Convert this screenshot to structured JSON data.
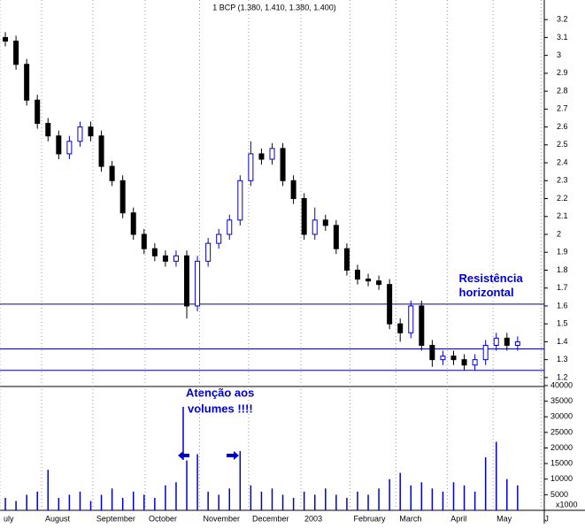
{
  "chart_data": {
    "type": "candlestick",
    "title": "1 BCP (1.380, 1.410, 1.380, 1.400)",
    "x": [
      0,
      1,
      2,
      3,
      4,
      5,
      6,
      7,
      8,
      9,
      10,
      11,
      12,
      13,
      14,
      15,
      16,
      17,
      18,
      19,
      20,
      21,
      22,
      23,
      24,
      25,
      26,
      27,
      28,
      29,
      30,
      31,
      32,
      33,
      34,
      35,
      36,
      37,
      38,
      39,
      40,
      41,
      42,
      43,
      44,
      45,
      46,
      47,
      48
    ],
    "open": [
      3.1,
      3.08,
      2.95,
      2.75,
      2.62,
      2.55,
      2.45,
      2.52,
      2.6,
      2.55,
      2.38,
      2.3,
      2.12,
      2.0,
      1.92,
      1.88,
      1.85,
      1.88,
      1.6,
      1.85,
      1.95,
      2.0,
      2.08,
      2.3,
      2.45,
      2.42,
      2.48,
      2.3,
      2.2,
      2.0,
      2.08,
      2.05,
      1.92,
      1.8,
      1.75,
      1.74,
      1.72,
      1.5,
      1.45,
      1.6,
      1.38,
      1.3,
      1.32,
      1.3,
      1.27,
      1.3,
      1.38,
      1.42,
      1.38
    ],
    "high": [
      3.13,
      3.11,
      2.98,
      2.78,
      2.65,
      2.58,
      2.55,
      2.63,
      2.63,
      2.58,
      2.41,
      2.33,
      2.15,
      2.03,
      1.95,
      1.91,
      1.91,
      1.91,
      1.88,
      1.98,
      2.03,
      2.11,
      2.33,
      2.52,
      2.48,
      2.51,
      2.51,
      2.33,
      2.23,
      2.15,
      2.11,
      2.08,
      1.95,
      1.83,
      1.78,
      1.77,
      1.75,
      1.53,
      1.63,
      1.63,
      1.41,
      1.35,
      1.35,
      1.33,
      1.33,
      1.41,
      1.45,
      1.45,
      1.43
    ],
    "low": [
      3.05,
      2.92,
      2.72,
      2.59,
      2.52,
      2.42,
      2.42,
      2.49,
      2.52,
      2.35,
      2.27,
      2.09,
      1.97,
      1.89,
      1.85,
      1.82,
      1.82,
      1.53,
      1.57,
      1.82,
      1.92,
      1.97,
      2.05,
      2.27,
      2.39,
      2.39,
      2.27,
      2.17,
      1.97,
      1.97,
      2.02,
      1.89,
      1.77,
      1.72,
      1.71,
      1.69,
      1.47,
      1.4,
      1.42,
      1.35,
      1.26,
      1.27,
      1.27,
      1.24,
      1.24,
      1.27,
      1.35,
      1.35,
      1.35
    ],
    "close": [
      3.08,
      2.95,
      2.75,
      2.62,
      2.55,
      2.45,
      2.52,
      2.6,
      2.55,
      2.38,
      2.3,
      2.12,
      2.0,
      1.92,
      1.88,
      1.85,
      1.88,
      1.6,
      1.85,
      1.95,
      2.0,
      2.08,
      2.3,
      2.45,
      2.42,
      2.48,
      2.3,
      2.2,
      2.0,
      2.08,
      2.05,
      1.92,
      1.8,
      1.75,
      1.74,
      1.72,
      1.5,
      1.45,
      1.6,
      1.38,
      1.3,
      1.32,
      1.3,
      1.27,
      1.3,
      1.38,
      1.42,
      1.38,
      1.4
    ],
    "up_color": "#0000cc",
    "down_color": "#000000",
    "xlim": [
      -0.5,
      50.5
    ],
    "xticks": [
      {
        "value": -0.5,
        "label": "uly"
      },
      {
        "value": 3.4,
        "label": "August"
      },
      {
        "value": 8.2,
        "label": "September"
      },
      {
        "value": 13.1,
        "label": "October"
      },
      {
        "value": 18.2,
        "label": "November"
      },
      {
        "value": 22.8,
        "label": "December"
      },
      {
        "value": 27.7,
        "label": "2003"
      },
      {
        "value": 32.3,
        "label": "February"
      },
      {
        "value": 36.6,
        "label": "March"
      },
      {
        "value": 41.4,
        "label": "April"
      },
      {
        "value": 45.7,
        "label": "May"
      },
      {
        "value": 50.2,
        "label": "J"
      }
    ],
    "ylim": [
      1.15,
      3.27
    ],
    "yticks": [
      1.2,
      1.3,
      1.4,
      1.5,
      1.6,
      1.7,
      1.8,
      1.9,
      2.0,
      2.1,
      2.2,
      2.3,
      2.4,
      2.5,
      2.6,
      2.7,
      2.8,
      2.9,
      3.0,
      3.1,
      3.2
    ],
    "horizontal_lines": [
      1.61,
      1.36,
      1.24
    ],
    "line_color": "#0000aa",
    "annotations": [
      {
        "text": "Resistência",
        "x": 42.5,
        "y": 1.75
      },
      {
        "text": "horizontal",
        "x": 42.5,
        "y": 1.67
      }
    ],
    "volume": {
      "values": [
        4000,
        3000,
        5000,
        6000,
        13000,
        4000,
        5000,
        6000,
        3000,
        5000,
        7000,
        4000,
        6000,
        5000,
        4000,
        8000,
        9000,
        16000,
        18000,
        6000,
        5000,
        7000,
        19000,
        8000,
        6000,
        7000,
        5000,
        4000,
        6000,
        5000,
        7000,
        5000,
        4000,
        6000,
        5000,
        7000,
        10000,
        12000,
        8000,
        9000,
        7000,
        6000,
        9000,
        8000,
        6000,
        17000,
        22000,
        10000,
        8000
      ],
      "color": "#0000cc",
      "ylim": [
        0,
        40000
      ],
      "yticks": [
        5000,
        10000,
        15000,
        20000,
        25000,
        30000,
        35000,
        40000
      ],
      "unit_label": "x1000",
      "annotations": [
        {
          "text": "Atenção aos"
        },
        {
          "text": "volumes !!!!"
        }
      ]
    }
  }
}
